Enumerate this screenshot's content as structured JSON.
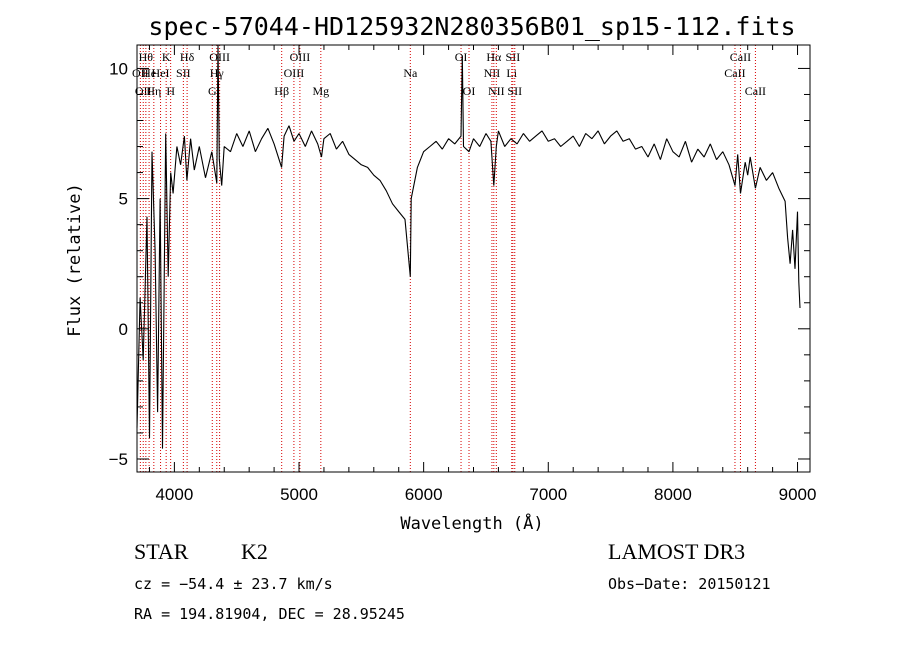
{
  "chart_data": {
    "type": "line",
    "title": "spec-57044-HD125932N280356B01_sp15-112.fits",
    "xlabel": "Wavelength (Å)",
    "ylabel": "Flux (relative)",
    "xlim": [
      3700,
      9100
    ],
    "ylim": [
      -5.5,
      10.9
    ],
    "x_ticks": [
      4000,
      5000,
      6000,
      7000,
      8000,
      9000
    ],
    "x_tick_labels": [
      "4000",
      "5000",
      "6000",
      "7000",
      "8000",
      "9000"
    ],
    "y_ticks": [
      -5,
      0,
      5,
      10
    ],
    "y_tick_labels": [
      "−5",
      "0",
      "5",
      "10"
    ],
    "grid": false,
    "series": [
      {
        "name": "spectrum",
        "points": [
          [
            3700,
            -3.8
          ],
          [
            3725,
            1.2
          ],
          [
            3750,
            -1.2
          ],
          [
            3780,
            4.3
          ],
          [
            3800,
            -4.2
          ],
          [
            3820,
            6.8
          ],
          [
            3845,
            3.0
          ],
          [
            3865,
            -3.2
          ],
          [
            3885,
            5.0
          ],
          [
            3905,
            -4.6
          ],
          [
            3930,
            7.5
          ],
          [
            3950,
            2.0
          ],
          [
            3970,
            6.0
          ],
          [
            3990,
            5.2
          ],
          [
            4020,
            7.0
          ],
          [
            4050,
            6.3
          ],
          [
            4080,
            7.4
          ],
          [
            4100,
            5.7
          ],
          [
            4130,
            7.3
          ],
          [
            4160,
            6.1
          ],
          [
            4200,
            7.0
          ],
          [
            4250,
            5.8
          ],
          [
            4300,
            6.8
          ],
          [
            4340,
            5.6
          ],
          [
            4350,
            11.0
          ],
          [
            4360,
            6.5
          ],
          [
            4380,
            5.5
          ],
          [
            4400,
            7.0
          ],
          [
            4450,
            6.8
          ],
          [
            4500,
            7.5
          ],
          [
            4550,
            7.0
          ],
          [
            4600,
            7.6
          ],
          [
            4650,
            6.8
          ],
          [
            4700,
            7.3
          ],
          [
            4750,
            7.7
          ],
          [
            4800,
            7.1
          ],
          [
            4860,
            6.2
          ],
          [
            4880,
            7.4
          ],
          [
            4920,
            7.8
          ],
          [
            4960,
            7.2
          ],
          [
            5000,
            7.5
          ],
          [
            5050,
            7.0
          ],
          [
            5100,
            7.6
          ],
          [
            5150,
            7.1
          ],
          [
            5180,
            6.6
          ],
          [
            5200,
            7.3
          ],
          [
            5250,
            7.5
          ],
          [
            5300,
            6.9
          ],
          [
            5350,
            7.2
          ],
          [
            5400,
            6.7
          ],
          [
            5450,
            6.5
          ],
          [
            5500,
            6.3
          ],
          [
            5550,
            6.2
          ],
          [
            5600,
            5.9
          ],
          [
            5650,
            5.7
          ],
          [
            5700,
            5.3
          ],
          [
            5750,
            4.8
          ],
          [
            5800,
            4.5
          ],
          [
            5850,
            4.2
          ],
          [
            5893,
            2.0
          ],
          [
            5900,
            5.0
          ],
          [
            5950,
            6.2
          ],
          [
            6000,
            6.8
          ],
          [
            6050,
            7.0
          ],
          [
            6100,
            7.2
          ],
          [
            6150,
            6.9
          ],
          [
            6200,
            7.3
          ],
          [
            6250,
            7.1
          ],
          [
            6300,
            7.4
          ],
          [
            6310,
            10.5
          ],
          [
            6320,
            7.0
          ],
          [
            6364,
            6.8
          ],
          [
            6400,
            7.3
          ],
          [
            6450,
            7.0
          ],
          [
            6500,
            7.5
          ],
          [
            6540,
            7.2
          ],
          [
            6563,
            5.5
          ],
          [
            6583,
            7.0
          ],
          [
            6600,
            7.6
          ],
          [
            6650,
            7.0
          ],
          [
            6700,
            7.3
          ],
          [
            6750,
            7.1
          ],
          [
            6800,
            7.5
          ],
          [
            6850,
            7.2
          ],
          [
            6900,
            7.4
          ],
          [
            6950,
            7.6
          ],
          [
            7000,
            7.2
          ],
          [
            7050,
            7.3
          ],
          [
            7100,
            7.0
          ],
          [
            7150,
            7.2
          ],
          [
            7200,
            7.4
          ],
          [
            7250,
            7.0
          ],
          [
            7300,
            7.5
          ],
          [
            7350,
            7.3
          ],
          [
            7400,
            7.6
          ],
          [
            7450,
            7.1
          ],
          [
            7500,
            7.4
          ],
          [
            7550,
            7.6
          ],
          [
            7600,
            7.2
          ],
          [
            7650,
            7.3
          ],
          [
            7700,
            6.9
          ],
          [
            7750,
            7.0
          ],
          [
            7800,
            6.6
          ],
          [
            7850,
            7.1
          ],
          [
            7900,
            6.5
          ],
          [
            7950,
            7.3
          ],
          [
            8000,
            6.8
          ],
          [
            8050,
            6.6
          ],
          [
            8100,
            7.2
          ],
          [
            8150,
            6.4
          ],
          [
            8200,
            6.9
          ],
          [
            8250,
            6.6
          ],
          [
            8300,
            7.1
          ],
          [
            8350,
            6.5
          ],
          [
            8400,
            6.8
          ],
          [
            8450,
            6.3
          ],
          [
            8498,
            5.5
          ],
          [
            8520,
            6.7
          ],
          [
            8542,
            5.2
          ],
          [
            8580,
            6.4
          ],
          [
            8600,
            5.9
          ],
          [
            8620,
            6.6
          ],
          [
            8662,
            5.4
          ],
          [
            8700,
            6.2
          ],
          [
            8750,
            5.7
          ],
          [
            8800,
            6.0
          ],
          [
            8850,
            5.4
          ],
          [
            8900,
            4.9
          ],
          [
            8920,
            3.5
          ],
          [
            8940,
            2.5
          ],
          [
            8960,
            3.8
          ],
          [
            8980,
            2.3
          ],
          [
            9000,
            4.5
          ],
          [
            9010,
            1.8
          ],
          [
            9020,
            0.8
          ]
        ]
      }
    ],
    "lines": [
      {
        "wave": 3727,
        "label": "OII",
        "row": 2
      },
      {
        "wave": 3750,
        "label": "OII",
        "row": 3
      },
      {
        "wave": 3771,
        "label": "Hθ",
        "row": 1
      },
      {
        "wave": 3797,
        "label": "He",
        "row": 2
      },
      {
        "wave": 3835,
        "label": "Hη",
        "row": 3
      },
      {
        "wave": 3889,
        "label": "HeI",
        "row": 2
      },
      {
        "wave": 3934,
        "label": "K",
        "row": 1
      },
      {
        "wave": 3970,
        "label": "H",
        "row": 3
      },
      {
        "wave": 4072,
        "label": "SII",
        "row": 2
      },
      {
        "wave": 4102,
        "label": "Hδ",
        "row": 1
      },
      {
        "wave": 4304,
        "label": "G",
        "row": 3
      },
      {
        "wave": 4340,
        "label": "Hγ",
        "row": 2
      },
      {
        "wave": 4363,
        "label": "OIII",
        "row": 1
      },
      {
        "wave": 4861,
        "label": "Hβ",
        "row": 3
      },
      {
        "wave": 4959,
        "label": "OIII",
        "row": 2
      },
      {
        "wave": 5007,
        "label": "OIII",
        "row": 1
      },
      {
        "wave": 5175,
        "label": "Mg",
        "row": 3
      },
      {
        "wave": 5893,
        "label": "Na",
        "row": 2
      },
      {
        "wave": 6300,
        "label": "OI",
        "row": 1
      },
      {
        "wave": 6364,
        "label": "OI",
        "row": 3
      },
      {
        "wave": 6548,
        "label": "NII",
        "row": 2
      },
      {
        "wave": 6563,
        "label": "Hα",
        "row": 1
      },
      {
        "wave": 6583,
        "label": "NII",
        "row": 3
      },
      {
        "wave": 6707,
        "label": "Li",
        "row": 2
      },
      {
        "wave": 6716,
        "label": "SII",
        "row": 1
      },
      {
        "wave": 6731,
        "label": "SII",
        "row": 3
      },
      {
        "wave": 8498,
        "label": "CaII",
        "row": 2
      },
      {
        "wave": 8542,
        "label": "CaII",
        "row": 1
      },
      {
        "wave": 8662,
        "label": "CaII",
        "row": 3
      }
    ]
  },
  "info": {
    "object_class": "STAR",
    "subclass": "K2",
    "survey": "LAMOST DR3",
    "redshift": "cz = −54.4 ± 23.7 km/s",
    "obs_date": "Obs−Date: 20150121",
    "coords": "RA = 194.81904, DEC =  28.95245"
  },
  "colors": {
    "spectrum": "#000000",
    "line_marker": "#d60000",
    "axes": "#000000"
  }
}
